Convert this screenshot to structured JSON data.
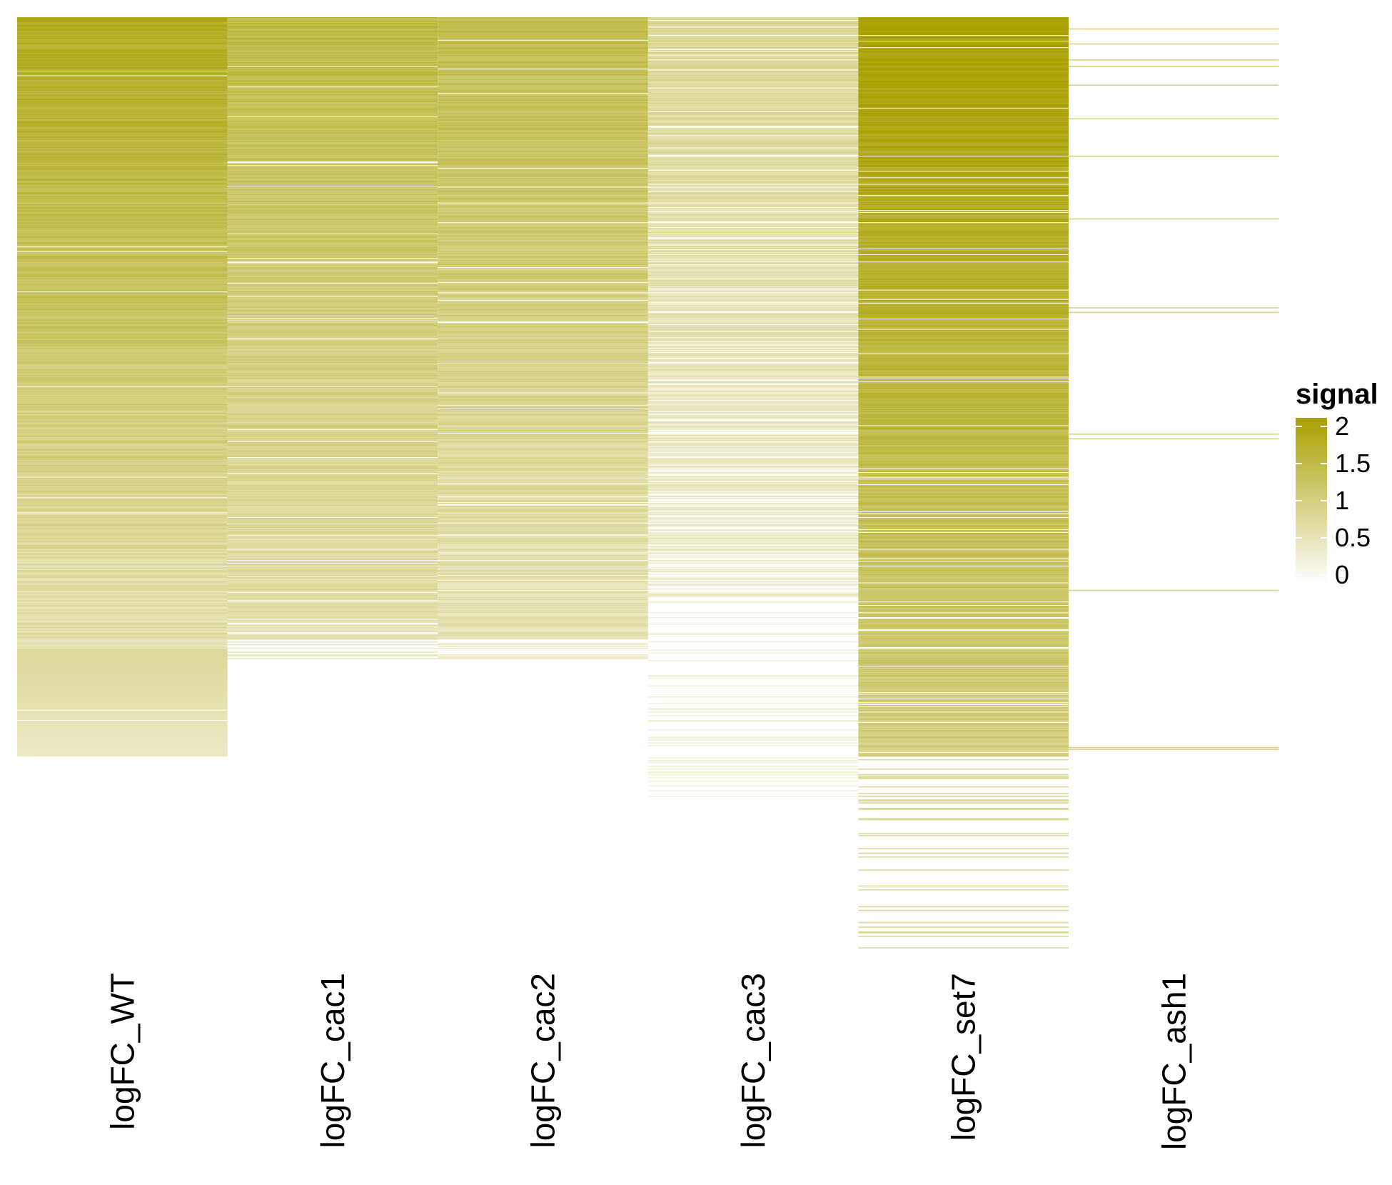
{
  "chart_data": {
    "type": "heatmap",
    "title": "",
    "xlabel": "",
    "ylabel": "",
    "columns": [
      "logFC_WT",
      "logFC_cac1",
      "logFC_cac2",
      "logFC_cac3",
      "logFC_set7",
      "logFC_ash1"
    ],
    "value_range": [
      0,
      2
    ],
    "color_low": "#ffffff",
    "color_high": "#a8a000",
    "rows_approx": 1000,
    "column_profiles": [
      {
        "name": "logFC_WT",
        "nonzero_rows": 790,
        "start_value": 1.75,
        "end_value": 0.4,
        "sparse_tail_rows": 0,
        "band_at_row": 675,
        "band_value": 0.8
      },
      {
        "name": "logFC_cac1",
        "nonzero_rows": 665,
        "start_value": 1.45,
        "end_value": 0.6,
        "sparse_tail_rows": 40,
        "band_at_row": null,
        "band_value": null
      },
      {
        "name": "logFC_cac2",
        "nonzero_rows": 665,
        "start_value": 1.4,
        "end_value": 0.55,
        "sparse_tail_rows": 25,
        "band_at_row": null,
        "band_value": null
      },
      {
        "name": "logFC_cac3",
        "nonzero_rows": 620,
        "start_value": 0.85,
        "end_value": 0.35,
        "sparse_tail_rows": 200,
        "band_at_row": null,
        "band_value": null
      },
      {
        "name": "logFC_set7",
        "nonzero_rows": 790,
        "start_value": 2.0,
        "end_value": 1.0,
        "sparse_tail_rows": 215,
        "band_at_row": null,
        "band_value": null
      },
      {
        "name": "logFC_ash1",
        "nonzero_rows": 0,
        "start_value": 0.9,
        "end_value": 0.9,
        "sparse_tail_rows": 0,
        "band_at_row": null,
        "band_value": null
      }
    ],
    "ash1_lines_rows": [
      12,
      28,
      45,
      52,
      72,
      108,
      148,
      215,
      310,
      315,
      445,
      450,
      612,
      780,
      782
    ],
    "legend": {
      "title": "signal",
      "position": "right",
      "ticks": [
        {
          "value": 2,
          "label": "2"
        },
        {
          "value": 1.5,
          "label": "1.5"
        },
        {
          "value": 1,
          "label": "1"
        },
        {
          "value": 0.5,
          "label": "0.5"
        },
        {
          "value": 0,
          "label": "0"
        }
      ]
    }
  }
}
